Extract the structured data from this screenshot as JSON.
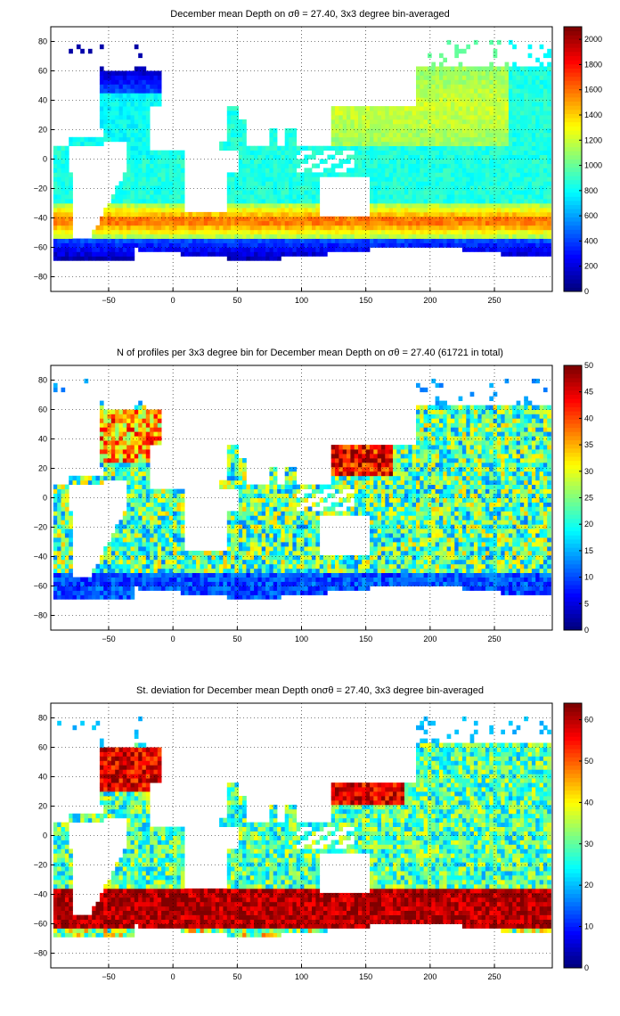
{
  "chart_data": [
    {
      "type": "heatmap",
      "title": "December mean Depth on σθ = 27.40, 3x3 degree bin-averaged",
      "xlim": [
        -95,
        295
      ],
      "ylim": [
        -90,
        90
      ],
      "x_ticks": [
        -50,
        0,
        50,
        100,
        150,
        200,
        250
      ],
      "y_ticks": [
        80,
        60,
        40,
        20,
        0,
        -20,
        -40,
        -60,
        -80
      ],
      "grid": true,
      "colormap": "jet",
      "colorbar": {
        "min": 0,
        "max": 2100,
        "ticks": [
          0,
          200,
          400,
          600,
          800,
          1000,
          1200,
          1400,
          1600,
          1800,
          2000
        ]
      },
      "field": "depth",
      "bin_size_deg": 3
    },
    {
      "type": "heatmap",
      "title": "N of profiles per 3x3 degree bin for December mean Depth on σθ = 27.40 (61721 in total)",
      "xlim": [
        -95,
        295
      ],
      "ylim": [
        -90,
        90
      ],
      "x_ticks": [
        -50,
        0,
        50,
        100,
        150,
        200,
        250
      ],
      "y_ticks": [
        80,
        60,
        40,
        20,
        0,
        -20,
        -40,
        -60,
        -80
      ],
      "grid": true,
      "colormap": "jet",
      "colorbar": {
        "min": 0,
        "max": 50,
        "ticks": [
          0,
          5,
          10,
          15,
          20,
          25,
          30,
          35,
          40,
          45,
          50
        ]
      },
      "field": "count",
      "total_profiles": 61721,
      "bin_size_deg": 3
    },
    {
      "type": "heatmap",
      "title": "St. deviation for December mean Depth onσθ = 27.40, 3x3 degree bin-averaged",
      "xlim": [
        -95,
        295
      ],
      "ylim": [
        -90,
        90
      ],
      "x_ticks": [
        -50,
        0,
        50,
        100,
        150,
        200,
        250
      ],
      "y_ticks": [
        80,
        60,
        40,
        20,
        0,
        -20,
        -40,
        -60,
        -80
      ],
      "grid": true,
      "colormap": "jet",
      "colorbar": {
        "min": 0,
        "max": 64,
        "ticks": [
          0,
          10,
          20,
          30,
          40,
          50,
          60
        ]
      },
      "field": "std",
      "bin_size_deg": 3
    }
  ]
}
